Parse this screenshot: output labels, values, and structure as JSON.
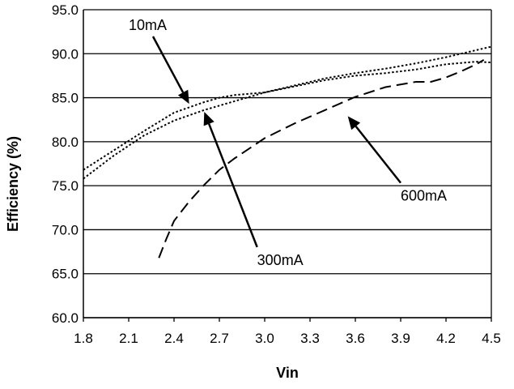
{
  "chart_data": {
    "type": "line",
    "title": "",
    "xlabel": "Vin",
    "ylabel": "Efficiency (%)",
    "xlim": [
      1.8,
      4.5
    ],
    "ylim": [
      60.0,
      95.0
    ],
    "x_ticks": [
      "1.8",
      "2.1",
      "2.4",
      "2.7",
      "3.0",
      "3.3",
      "3.6",
      "3.9",
      "4.2",
      "4.5"
    ],
    "y_ticks": [
      "60.0",
      "65.0",
      "70.0",
      "75.0",
      "80.0",
      "85.0",
      "90.0",
      "95.0"
    ],
    "grid": "horizontal",
    "series": [
      {
        "name": "10mA",
        "style": "dotted",
        "x": [
          1.8,
          2.0,
          2.2,
          2.4,
          2.6,
          2.7,
          2.8,
          3.0,
          3.2,
          3.4,
          3.6,
          3.8,
          4.0,
          4.2,
          4.4,
          4.5
        ],
        "y": [
          76.8,
          79.0,
          81.2,
          83.3,
          84.5,
          85.0,
          85.3,
          85.6,
          86.4,
          87.2,
          87.8,
          88.3,
          88.9,
          89.6,
          90.4,
          90.8
        ]
      },
      {
        "name": "300mA",
        "style": "dotted",
        "x": [
          1.8,
          2.0,
          2.2,
          2.4,
          2.6,
          2.8,
          3.0,
          3.2,
          3.4,
          3.6,
          3.8,
          4.0,
          4.2,
          4.4,
          4.5
        ],
        "y": [
          75.8,
          78.4,
          80.7,
          82.4,
          83.6,
          84.6,
          85.6,
          86.3,
          87.0,
          87.5,
          87.8,
          88.2,
          88.8,
          89.1,
          89.0
        ]
      },
      {
        "name": "600mA",
        "style": "dashed",
        "x": [
          2.3,
          2.35,
          2.4,
          2.5,
          2.6,
          2.7,
          2.8,
          3.0,
          3.2,
          3.4,
          3.6,
          3.8,
          4.0,
          4.1,
          4.2,
          4.3,
          4.4,
          4.45
        ],
        "y": [
          66.8,
          69.0,
          71.0,
          73.2,
          75.1,
          76.8,
          78.1,
          80.4,
          82.1,
          83.6,
          85.1,
          86.2,
          86.8,
          86.8,
          87.3,
          88.0,
          88.8,
          89.3
        ]
      }
    ],
    "annotations": [
      {
        "text": "10mA",
        "label_x": 2.1,
        "label_y": 92.7,
        "target_x": 2.5,
        "target_y": 84.3
      },
      {
        "text": "300mA",
        "label_x": 2.95,
        "label_y": 66.0,
        "target_x": 2.6,
        "target_y": 83.4
      },
      {
        "text": "600mA",
        "label_x": 3.9,
        "label_y": 73.3,
        "target_x": 3.55,
        "target_y": 82.9
      }
    ]
  }
}
